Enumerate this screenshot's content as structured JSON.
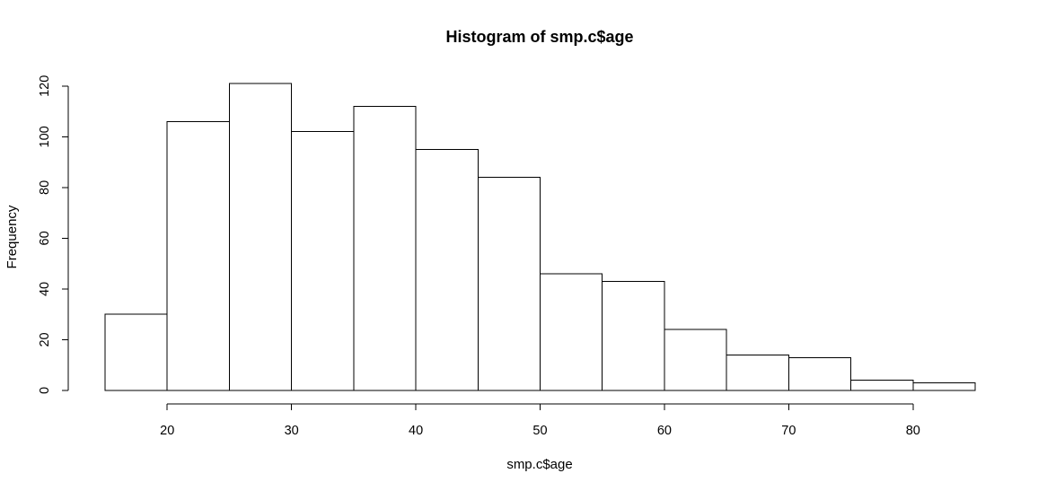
{
  "chart_data": {
    "type": "bar",
    "title": "Histogram of smp.c$age",
    "xlabel": "smp.c$age",
    "ylabel": "Frequency",
    "bins": [
      {
        "x0": 15,
        "x1": 20,
        "count": 30
      },
      {
        "x0": 20,
        "x1": 25,
        "count": 106
      },
      {
        "x0": 25,
        "x1": 30,
        "count": 121
      },
      {
        "x0": 30,
        "x1": 35,
        "count": 102
      },
      {
        "x0": 35,
        "x1": 40,
        "count": 112
      },
      {
        "x0": 40,
        "x1": 45,
        "count": 95
      },
      {
        "x0": 45,
        "x1": 50,
        "count": 84
      },
      {
        "x0": 50,
        "x1": 55,
        "count": 46
      },
      {
        "x0": 55,
        "x1": 60,
        "count": 43
      },
      {
        "x0": 60,
        "x1": 65,
        "count": 24
      },
      {
        "x0": 65,
        "x1": 70,
        "count": 14
      },
      {
        "x0": 70,
        "x1": 75,
        "count": 13
      },
      {
        "x0": 75,
        "x1": 80,
        "count": 4
      },
      {
        "x0": 80,
        "x1": 85,
        "count": 3
      }
    ],
    "x_ticks": [
      "20",
      "30",
      "40",
      "50",
      "60",
      "70",
      "80"
    ],
    "y_ticks": [
      "0",
      "20",
      "40",
      "60",
      "80",
      "100",
      "120"
    ],
    "xlim": [
      15,
      85
    ],
    "ylim": [
      0,
      121
    ],
    "grid": false,
    "legend": "none",
    "bar_fill": "#ffffff",
    "bar_stroke": "#000000"
  }
}
